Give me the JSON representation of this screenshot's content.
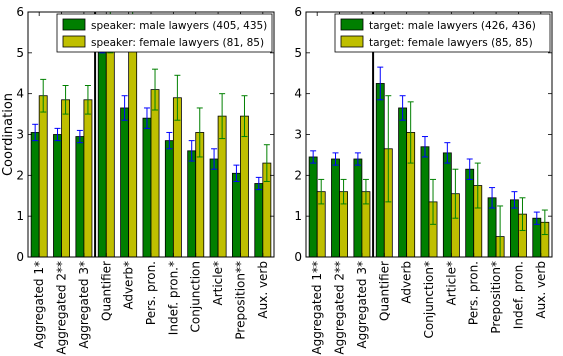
{
  "chart_data": [
    {
      "type": "bar",
      "ylabel": "Coordination",
      "ylim": [
        0,
        6
      ],
      "yticks": [
        0,
        1,
        2,
        3,
        4,
        5,
        6
      ],
      "legend_position": "top-right",
      "separator_after_index": 2,
      "categories": [
        "Aggregated 1*",
        "Aggregated 2**",
        "Aggregated 3*",
        "Quantifier",
        "Adverb*",
        "Pers. pron.",
        "Indef. pron.*",
        "Conjunction",
        "Article*",
        "Preposition**",
        "Aux. verb"
      ],
      "series": [
        {
          "name": "speaker: male lawyers (405, 435)",
          "color": "#007f00",
          "errcolor": "#0000ff",
          "values": [
            3.05,
            3.0,
            2.95,
            5.3,
            3.65,
            3.4,
            2.85,
            2.6,
            2.4,
            2.05,
            1.8
          ],
          "err": [
            0.2,
            0.15,
            0.15,
            0.3,
            0.3,
            0.25,
            0.2,
            0.25,
            0.25,
            0.2,
            0.15
          ]
        },
        {
          "name": "speaker: female lawyers (81, 85)",
          "color": "#bfbf00",
          "errcolor": "#008000",
          "values": [
            3.95,
            3.85,
            3.85,
            5.6,
            5.6,
            4.1,
            3.9,
            3.05,
            3.45,
            3.45,
            2.3
          ],
          "err": [
            0.4,
            0.35,
            0.35,
            0.6,
            0.5,
            0.5,
            0.55,
            0.6,
            0.55,
            0.5,
            0.45
          ]
        }
      ]
    },
    {
      "type": "bar",
      "ylabel": "",
      "ylim": [
        0,
        6
      ],
      "yticks": [
        0,
        1,
        2,
        3,
        4,
        5,
        6
      ],
      "legend_position": "top-right",
      "separator_after_index": 2,
      "categories": [
        "Aggregated 1**",
        "Aggregated 2**",
        "Aggregated 3*",
        "Quantifier",
        "Adverb",
        "Conjunction*",
        "Article*",
        "Pers. pron.",
        "Preposition*",
        "Indef. pron.",
        "Aux. verb"
      ],
      "series": [
        {
          "name": "target: male lawyers (426, 436)",
          "color": "#007f00",
          "errcolor": "#0000ff",
          "values": [
            2.45,
            2.4,
            2.4,
            4.25,
            3.65,
            2.7,
            2.55,
            2.15,
            1.45,
            1.4,
            0.95
          ],
          "err": [
            0.15,
            0.15,
            0.15,
            0.4,
            0.3,
            0.25,
            0.25,
            0.25,
            0.25,
            0.2,
            0.15
          ]
        },
        {
          "name": "target: female lawyers (85, 85)",
          "color": "#bfbf00",
          "errcolor": "#008000",
          "values": [
            1.6,
            1.6,
            1.6,
            2.65,
            3.05,
            1.35,
            1.55,
            1.75,
            0.5,
            1.05,
            0.85
          ],
          "err": [
            0.3,
            0.3,
            0.3,
            1.3,
            0.75,
            0.55,
            0.6,
            0.55,
            0.75,
            0.4,
            0.3
          ]
        }
      ]
    }
  ]
}
